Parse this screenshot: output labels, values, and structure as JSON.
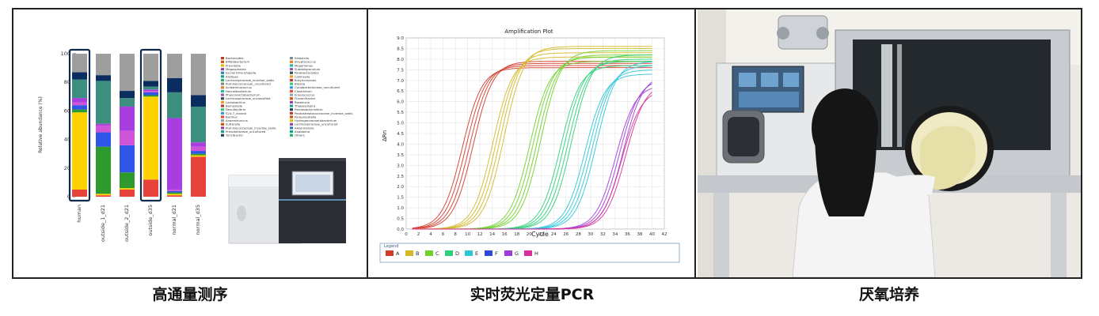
{
  "captions": [
    "高通量测序",
    "实时荧光定量PCR",
    "厌氧培养"
  ],
  "sequencing": {
    "ylabel": "Relative abundance (%)",
    "yticks": [
      "0",
      "20",
      "40",
      "60",
      "80",
      "100"
    ],
    "samples": [
      "human",
      "outside_1_d21",
      "outside_2_d21",
      "outside_d35",
      "normal_d21",
      "normal_d35"
    ],
    "highlighted": [
      "human",
      "outside_d35"
    ],
    "legend_col1": [
      "Bacteroides",
      "Bifidobacterium",
      "Prevotella",
      "Megasphaera",
      "Escherichia-Shigella",
      "Alistipes",
      "Lachnospiraceae_incertae_sedis",
      "Ruminococcaceae_uncultured",
      "Acidaminococcus",
      "Faecalibacterium",
      "Phascolarctobacterium",
      "Lachnospiraceae_unclassified",
      "Lactobacillus",
      "Barnesiella",
      "Desulfovibrio",
      "S24-7_norank",
      "Bacillus",
      "Anaerotruncus",
      "Sutterella",
      "Ruminococcaceae_incertae_sedis",
      "Prevotellaceae_uncultured",
      "Turicibacter"
    ],
    "legend_col2": [
      "Klebsiella",
      "Streptococcus",
      "Megamonas",
      "Subdoligranulum",
      "Parabacteroides",
      "Collinsella",
      "Butyricimonas",
      "Blautia",
      "Coriobacteriaceae_uncultured",
      "Clostridium",
      "Enterococcus",
      "Flavonifractor",
      "Roseburia",
      "Thalassospira",
      "Pseudobutyrivibrio",
      "Peptostreptococcaceae_incertae_sedis",
      "Paraprevotella",
      "Hydrogenoanaerobacterium",
      "Lachnospiraceae_uncultured",
      "Akkermansia",
      "Anabaena",
      "Others"
    ]
  },
  "pcr": {
    "title": "Amplification Plot",
    "xlabel": "Cycle",
    "ylabel": "ΔRn",
    "yticks": [
      "0.0",
      "0.5",
      "1.0",
      "1.5",
      "2.0",
      "2.5",
      "3.0",
      "3.5",
      "4.0",
      "4.5",
      "5.0",
      "5.5",
      "6.0",
      "6.5",
      "7.0",
      "7.5",
      "8.0",
      "8.5",
      "9.0"
    ],
    "xticks": [
      "0",
      "2",
      "4",
      "6",
      "8",
      "10",
      "12",
      "14",
      "16",
      "18",
      "20",
      "22",
      "24",
      "26",
      "28",
      "30",
      "32",
      "34",
      "36",
      "38",
      "40",
      "42"
    ],
    "legend_title": "Legend",
    "legend": [
      "A",
      "B",
      "C",
      "D",
      "E",
      "F",
      "G",
      "H"
    ]
  },
  "colors": {
    "A": "#d23a2a",
    "B": "#d4b826",
    "C": "#6fd12a",
    "D": "#2ccf7a",
    "E": "#2cc6d8",
    "F": "#3048d8",
    "G": "#a03ad8",
    "H": "#d8309a"
  },
  "chart_data": [
    {
      "type": "bar",
      "ylabel": "Relative abundance (%)",
      "ylim": [
        0,
        100
      ],
      "categories": [
        "human",
        "outside_1_d21",
        "outside_2_d21",
        "outside_d35",
        "normal_d21",
        "normal_d35"
      ],
      "series": [
        {
          "name": "Bacteroides",
          "values": [
            5,
            1,
            5,
            12,
            1,
            28
          ]
        },
        {
          "name": "Prevotella",
          "values": [
            54,
            1,
            1,
            58,
            1,
            1
          ]
        },
        {
          "name": "Megasphaera",
          "values": [
            2,
            33,
            11,
            1,
            1,
            1
          ]
        },
        {
          "name": "Escherichia-Shigella",
          "values": [
            3,
            10,
            19,
            2,
            1,
            2
          ]
        },
        {
          "name": "Alistipes",
          "values": [
            2,
            5,
            10,
            1,
            1,
            3
          ]
        },
        {
          "name": "Lachnospiraceae_incertae_sedis",
          "values": [
            3,
            1,
            17,
            1,
            50,
            3
          ]
        },
        {
          "name": "Ruminococcaceae_uncultured",
          "values": [
            13,
            30,
            6,
            2,
            18,
            25
          ]
        },
        {
          "name": "Faecalibacterium",
          "values": [
            5,
            4,
            5,
            4,
            10,
            8
          ]
        },
        {
          "name": "Others",
          "values": [
            13,
            15,
            26,
            19,
            17,
            29
          ]
        }
      ]
    },
    {
      "type": "line",
      "title": "Amplification Plot",
      "xlabel": "Cycle",
      "ylabel": "ΔRn",
      "xlim": [
        0,
        42
      ],
      "ylim": [
        0,
        9
      ],
      "grid": true,
      "series": [
        {
          "name": "A",
          "midpoint": 10,
          "plateau": [
            7.6,
            7.7,
            7.8,
            7.9
          ]
        },
        {
          "name": "B",
          "midpoint": 15,
          "plateau": [
            8.1,
            8.3,
            8.5,
            8.6
          ]
        },
        {
          "name": "C",
          "midpoint": 21,
          "plateau": [
            7.9,
            8.1,
            8.2,
            8.4
          ]
        },
        {
          "name": "D",
          "midpoint": 26,
          "plateau": [
            7.7,
            7.9,
            8.0,
            8.2
          ]
        },
        {
          "name": "E",
          "midpoint": 30,
          "plateau": [
            7.3,
            7.5,
            7.7,
            7.9
          ]
        },
        {
          "name": "G",
          "midpoint": 35,
          "plateau": [
            6.8,
            7.1,
            7.3
          ]
        },
        {
          "name": "H",
          "midpoint": 36,
          "plateau": [
            6.6,
            6.9
          ]
        }
      ]
    }
  ]
}
